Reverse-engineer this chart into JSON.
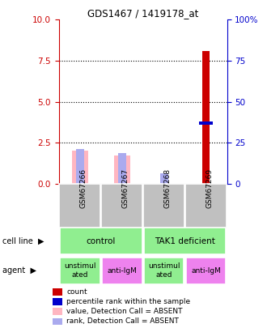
{
  "title": "GDS1467 / 1419178_at",
  "samples": [
    "GSM67266",
    "GSM67267",
    "GSM67268",
    "GSM67269"
  ],
  "ylim_left": [
    0,
    10
  ],
  "ylim_right": [
    0,
    100
  ],
  "yticks_left": [
    0,
    2.5,
    5,
    7.5,
    10
  ],
  "yticks_right": [
    0,
    25,
    50,
    75,
    100
  ],
  "bar_data": {
    "red_count": [
      0,
      0,
      0,
      8.1
    ],
    "blue_percentile": [
      0,
      0,
      0,
      3.7
    ],
    "pink_value_absent": [
      2.0,
      1.7,
      0,
      0
    ],
    "lavender_rank_absent": [
      2.1,
      1.85,
      0.65,
      0
    ]
  },
  "cell_line_labels": [
    "control",
    "TAK1 deficient"
  ],
  "cell_line_spans": [
    [
      0,
      1
    ],
    [
      2,
      3
    ]
  ],
  "cell_line_color": "#90EE90",
  "agent_labels": [
    "unstimul\nated",
    "anti-IgM",
    "unstimul\nated",
    "anti-IgM"
  ],
  "agent_colors": [
    "#90EE90",
    "#EE82EE",
    "#90EE90",
    "#EE82EE"
  ],
  "colors": {
    "red": "#CC0000",
    "blue": "#0000CC",
    "pink": "#FFB6C1",
    "lavender": "#AAAAEE",
    "sample_label_bg": "#C0C0C0",
    "axis_left_color": "#CC0000",
    "axis_right_color": "#0000CC"
  },
  "legend": [
    {
      "color": "#CC0000",
      "label": "count"
    },
    {
      "color": "#0000CC",
      "label": "percentile rank within the sample"
    },
    {
      "color": "#FFB6C1",
      "label": "value, Detection Call = ABSENT"
    },
    {
      "color": "#AAAAEE",
      "label": "rank, Detection Call = ABSENT"
    }
  ],
  "bar_width": 0.35,
  "grid_dotted": [
    2.5,
    5,
    7.5
  ]
}
